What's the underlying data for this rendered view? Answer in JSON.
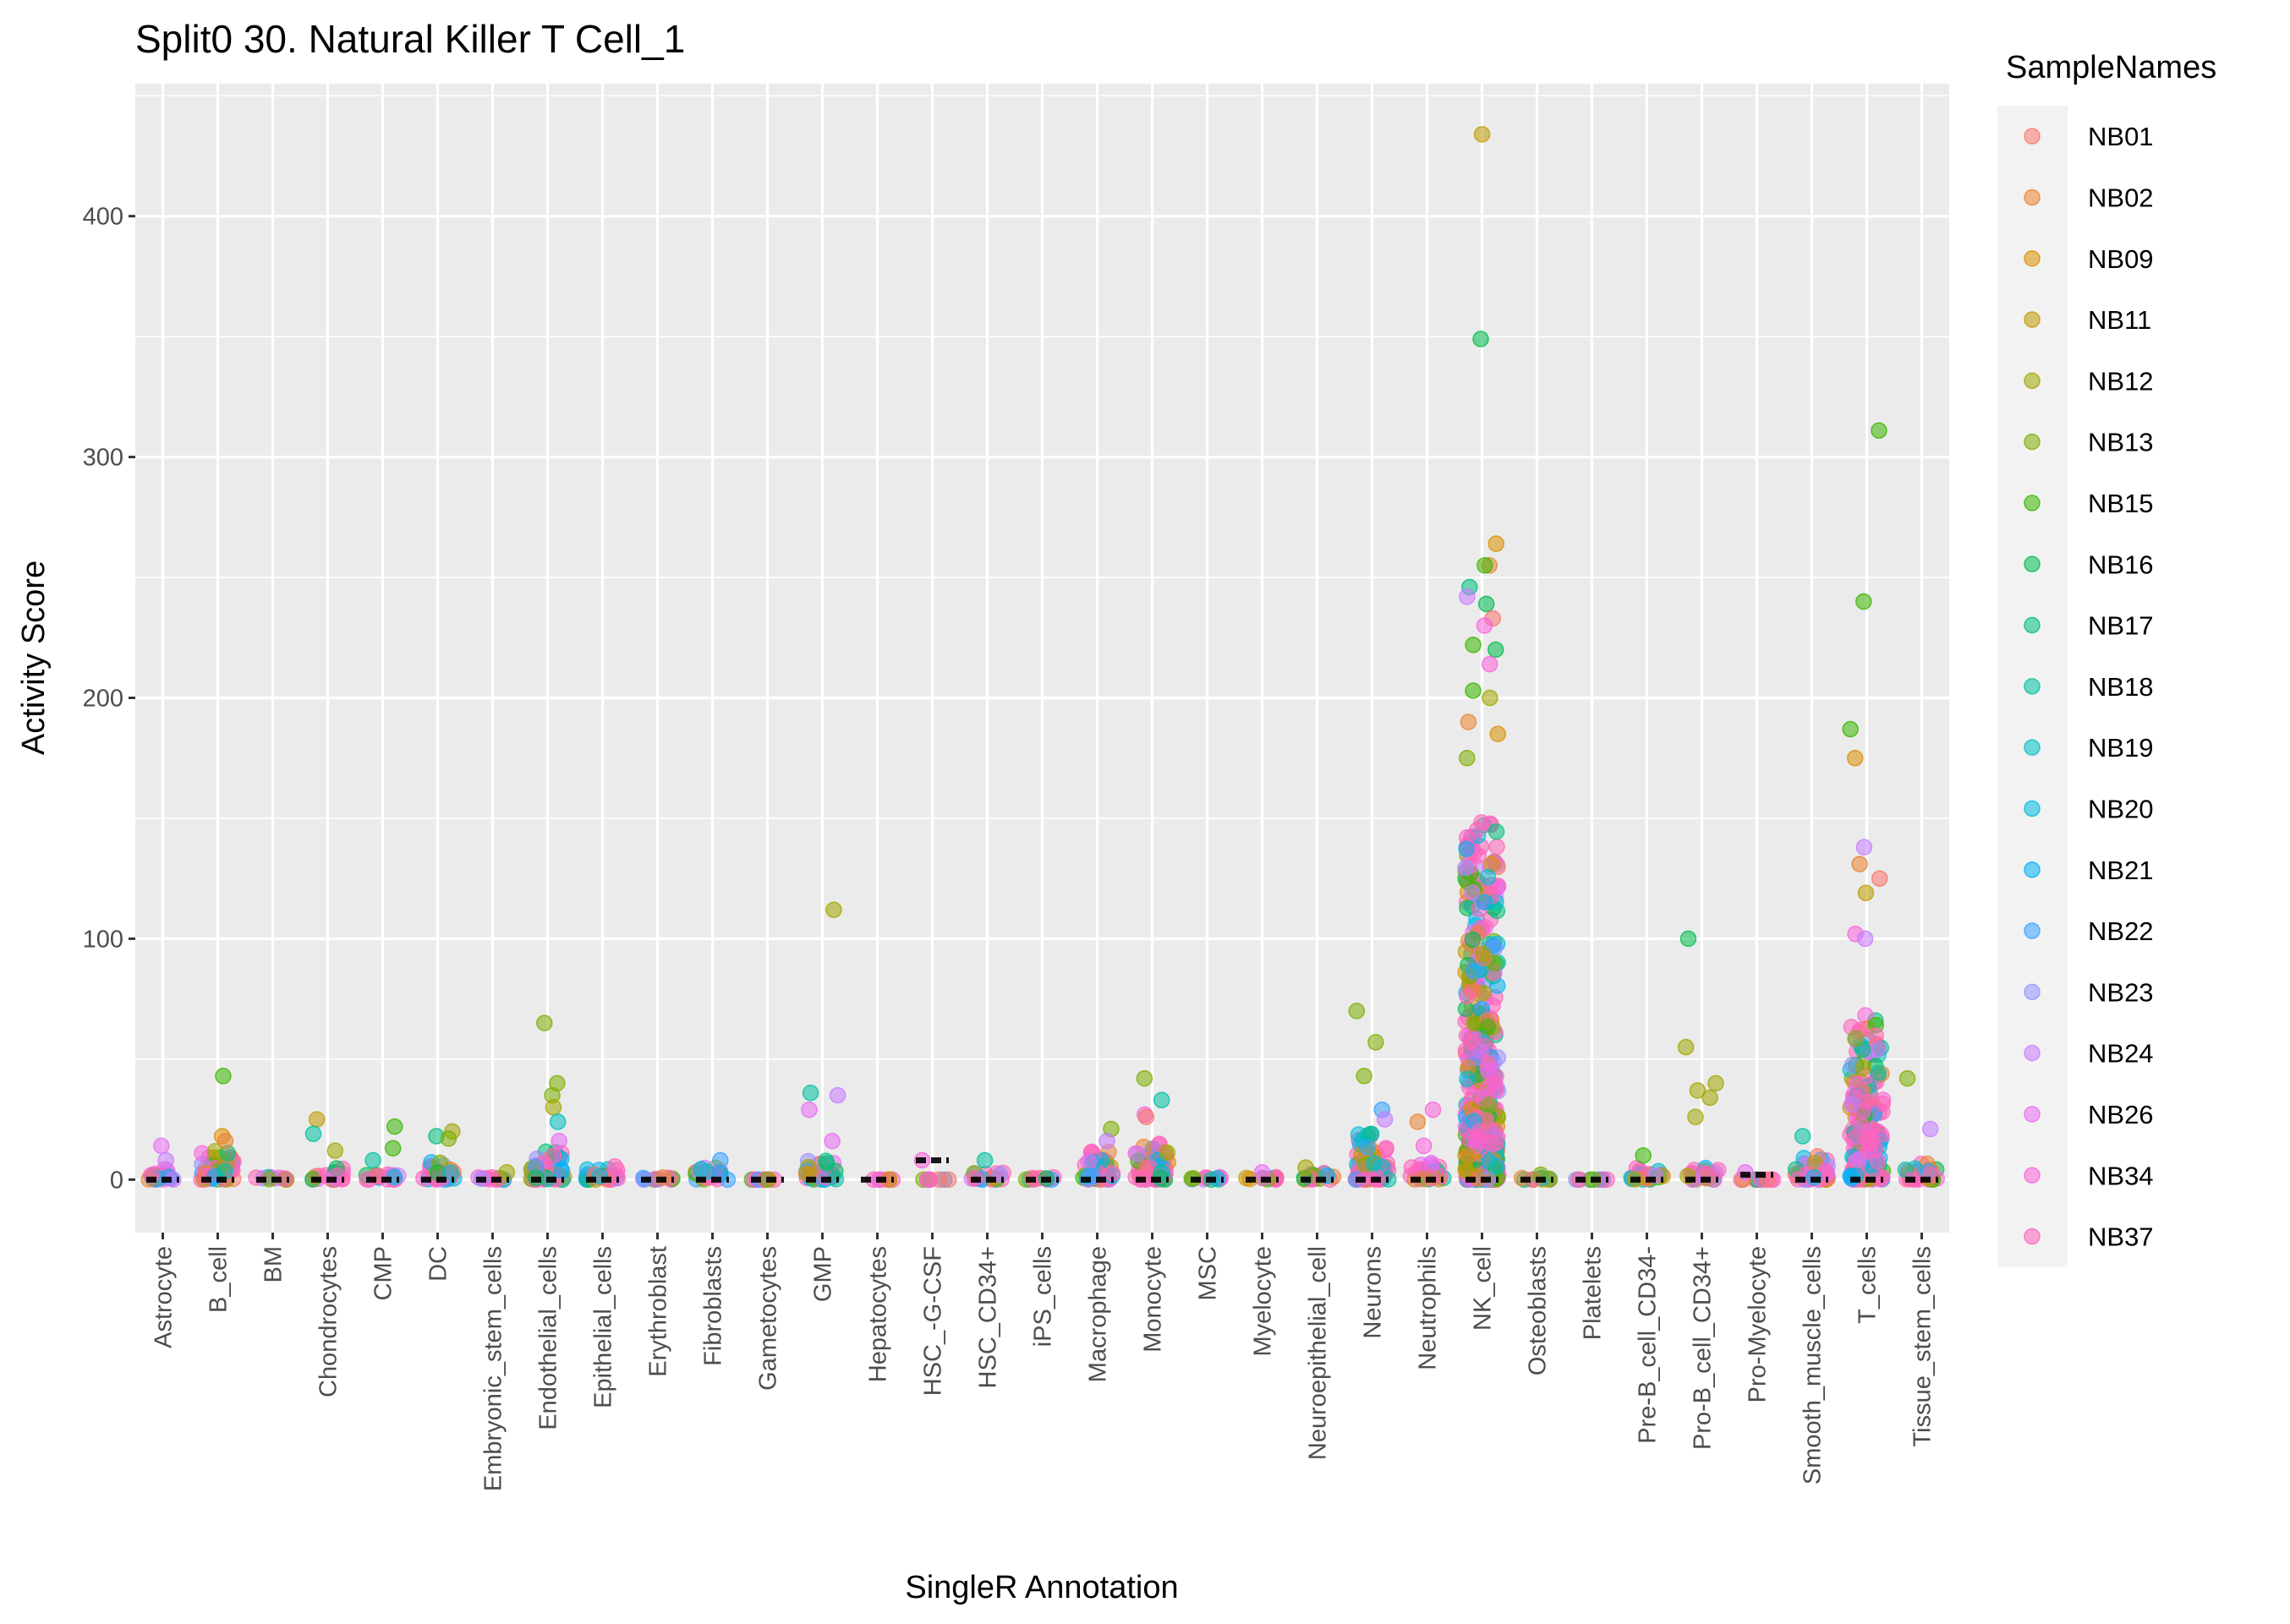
{
  "chart_data": {
    "type": "scatter",
    "subtype": "jittered strip plot with median crossbars",
    "title": "Split0 30. Natural Killer T Cell_1",
    "xlabel": "SingleR Annotation",
    "ylabel": "Activity Score",
    "ylim": [
      -22,
      455
    ],
    "yticks": [
      0,
      100,
      200,
      300,
      400
    ],
    "grid": true,
    "legend": {
      "title": "SampleNames",
      "placement": "right",
      "entries": [
        "NB01",
        "NB02",
        "NB09",
        "NB11",
        "NB12",
        "NB13",
        "NB15",
        "NB16",
        "NB17",
        "NB18",
        "NB19",
        "NB20",
        "NB21",
        "NB22",
        "NB23",
        "NB24",
        "NB26",
        "NB34",
        "NB37"
      ],
      "colors": [
        "#F8766D",
        "#EA8331",
        "#D89000",
        "#C09B00",
        "#A3A500",
        "#7CAE00",
        "#39B600",
        "#00BB4E",
        "#00BF7D",
        "#00C1A3",
        "#00BFC4",
        "#00BAE0",
        "#00B0F6",
        "#35A2FF",
        "#9590FF",
        "#C77CFF",
        "#E76BF3",
        "#FA62DB",
        "#FF62BC"
      ]
    },
    "categories": [
      {
        "name": "Astrocyte",
        "median": 0,
        "bulk_max": 5,
        "points": [
          [
            "NB26",
            14
          ],
          [
            "NB24",
            8
          ]
        ]
      },
      {
        "name": "B_cell",
        "median": 0,
        "bulk_max": 12,
        "points": [
          [
            "NB15",
            43
          ],
          [
            "NB09",
            18
          ],
          [
            "NB02",
            16
          ]
        ]
      },
      {
        "name": "BM",
        "median": 0,
        "bulk_max": 1,
        "points": []
      },
      {
        "name": "Chondrocytes",
        "median": 0,
        "bulk_max": 5,
        "points": [
          [
            "NB11",
            25
          ],
          [
            "NB18",
            19
          ],
          [
            "NB12",
            12
          ]
        ]
      },
      {
        "name": "CMP",
        "median": 0,
        "bulk_max": 3,
        "points": [
          [
            "NB15",
            22
          ],
          [
            "NB15",
            13
          ],
          [
            "NB18",
            8
          ]
        ]
      },
      {
        "name": "DC",
        "median": 0,
        "bulk_max": 8,
        "points": [
          [
            "NB12",
            20
          ],
          [
            "NB17",
            18
          ],
          [
            "NB13",
            17
          ]
        ]
      },
      {
        "name": "Embryonic_stem_cells",
        "median": 0,
        "bulk_max": 1,
        "points": [
          [
            "NB12",
            3
          ]
        ]
      },
      {
        "name": "Endothelial_cells",
        "median": 0,
        "bulk_max": 12,
        "points": [
          [
            "NB13",
            65
          ],
          [
            "NB13",
            40
          ],
          [
            "NB13",
            35
          ],
          [
            "NB12",
            30
          ],
          [
            "NB19",
            24
          ],
          [
            "NB26",
            16
          ]
        ]
      },
      {
        "name": "Epithelial_cells",
        "median": 0,
        "bulk_max": 6,
        "points": []
      },
      {
        "name": "Erythroblast",
        "median": 0,
        "bulk_max": 1,
        "points": []
      },
      {
        "name": "Fibroblasts",
        "median": 0,
        "bulk_max": 5,
        "points": [
          [
            "NB22",
            8
          ]
        ]
      },
      {
        "name": "Gametocytes",
        "median": 0,
        "bulk_max": 0,
        "points": [
          [
            "NB13",
            0
          ]
        ]
      },
      {
        "name": "GMP",
        "median": 0,
        "bulk_max": 8,
        "points": [
          [
            "NB12",
            112
          ],
          [
            "NB18",
            36
          ],
          [
            "NB24",
            35
          ],
          [
            "NB26",
            29
          ],
          [
            "NB26",
            16
          ]
        ]
      },
      {
        "name": "Hepatocytes",
        "median": 0,
        "bulk_max": 0,
        "points": []
      },
      {
        "name": "HSC_-G-CSF",
        "median": 8,
        "bulk_max": 0,
        "points": [
          [
            "NB34",
            8
          ]
        ]
      },
      {
        "name": "HSC_CD34+",
        "median": 0,
        "bulk_max": 3,
        "points": [
          [
            "NB18",
            8
          ]
        ]
      },
      {
        "name": "iPS_cells",
        "median": 0,
        "bulk_max": 1,
        "points": []
      },
      {
        "name": "Macrophage",
        "median": 0,
        "bulk_max": 12,
        "points": [
          [
            "NB13",
            21
          ],
          [
            "NB24",
            16
          ]
        ]
      },
      {
        "name": "Monocyte",
        "median": 0,
        "bulk_max": 15,
        "points": [
          [
            "NB13",
            42
          ],
          [
            "NB18",
            33
          ],
          [
            "NB34",
            27
          ],
          [
            "NB01",
            26
          ]
        ]
      },
      {
        "name": "MSC",
        "median": 0,
        "bulk_max": 1,
        "points": []
      },
      {
        "name": "Myelocyte",
        "median": 0,
        "bulk_max": 1,
        "points": [
          [
            "NB26",
            3
          ]
        ]
      },
      {
        "name": "Neuroepithelial_cell",
        "median": 0,
        "bulk_max": 3,
        "points": [
          [
            "NB12",
            5
          ]
        ]
      },
      {
        "name": "Neurons",
        "median": 0,
        "bulk_max": 20,
        "points": [
          [
            "NB13",
            70
          ],
          [
            "NB13",
            57
          ],
          [
            "NB13",
            43
          ],
          [
            "NB22",
            29
          ],
          [
            "NB24",
            25
          ]
        ]
      },
      {
        "name": "Neutrophils",
        "median": 0,
        "bulk_max": 7,
        "points": [
          [
            "NB34",
            29
          ],
          [
            "NB02",
            24
          ],
          [
            "NB34",
            14
          ]
        ]
      },
      {
        "name": "NK_cell",
        "median": 0,
        "bulk_max": 150,
        "points": [
          [
            "NB11",
            434
          ],
          [
            "NB16",
            349
          ],
          [
            "NB09",
            264
          ],
          [
            "NB02",
            255
          ],
          [
            "NB15",
            255
          ],
          [
            "NB17",
            246
          ],
          [
            "NB24",
            242
          ],
          [
            "NB16",
            239
          ],
          [
            "NB01",
            233
          ],
          [
            "NB34",
            230
          ],
          [
            "NB15",
            222
          ],
          [
            "NB16",
            220
          ],
          [
            "NB34",
            214
          ],
          [
            "NB15",
            203
          ],
          [
            "NB12",
            200
          ],
          [
            "NB02",
            190
          ],
          [
            "NB09",
            185
          ],
          [
            "NB13",
            175
          ]
        ]
      },
      {
        "name": "Osteoblasts",
        "median": 0,
        "bulk_max": 1,
        "points": [
          [
            "NB13",
            2
          ]
        ]
      },
      {
        "name": "Platelets",
        "median": 0,
        "bulk_max": 0,
        "points": [
          [
            "NB13",
            0
          ]
        ]
      },
      {
        "name": "Pre-B_cell_CD34-",
        "median": 0,
        "bulk_max": 6,
        "points": [
          [
            "NB15",
            10
          ]
        ]
      },
      {
        "name": "Pro-B_cell_CD34+",
        "median": 0,
        "bulk_max": 5,
        "points": [
          [
            "NB16",
            100
          ],
          [
            "NB12",
            55
          ],
          [
            "NB12",
            40
          ],
          [
            "NB12",
            37
          ],
          [
            "NB12",
            34
          ],
          [
            "NB12",
            26
          ]
        ]
      },
      {
        "name": "Pro-Myelocyte",
        "median": 2,
        "bulk_max": 0,
        "points": [
          [
            "NB26",
            3
          ],
          [
            "NB01",
            0
          ]
        ]
      },
      {
        "name": "Smooth_muscle_cells",
        "median": 0,
        "bulk_max": 10,
        "points": [
          [
            "NB18",
            18
          ]
        ]
      },
      {
        "name": "T_cells",
        "median": 0,
        "bulk_max": 70,
        "points": [
          [
            "NB15",
            311
          ],
          [
            "NB15",
            240
          ],
          [
            "NB15",
            187
          ],
          [
            "NB09",
            175
          ],
          [
            "NB24",
            138
          ],
          [
            "NB02",
            131
          ],
          [
            "NB01",
            125
          ],
          [
            "NB11",
            119
          ],
          [
            "NB34",
            102
          ],
          [
            "NB24",
            100
          ]
        ]
      },
      {
        "name": "Tissue_stem_cells",
        "median": 0,
        "bulk_max": 8,
        "points": [
          [
            "NB13",
            42
          ],
          [
            "NB24",
            21
          ]
        ]
      }
    ]
  }
}
